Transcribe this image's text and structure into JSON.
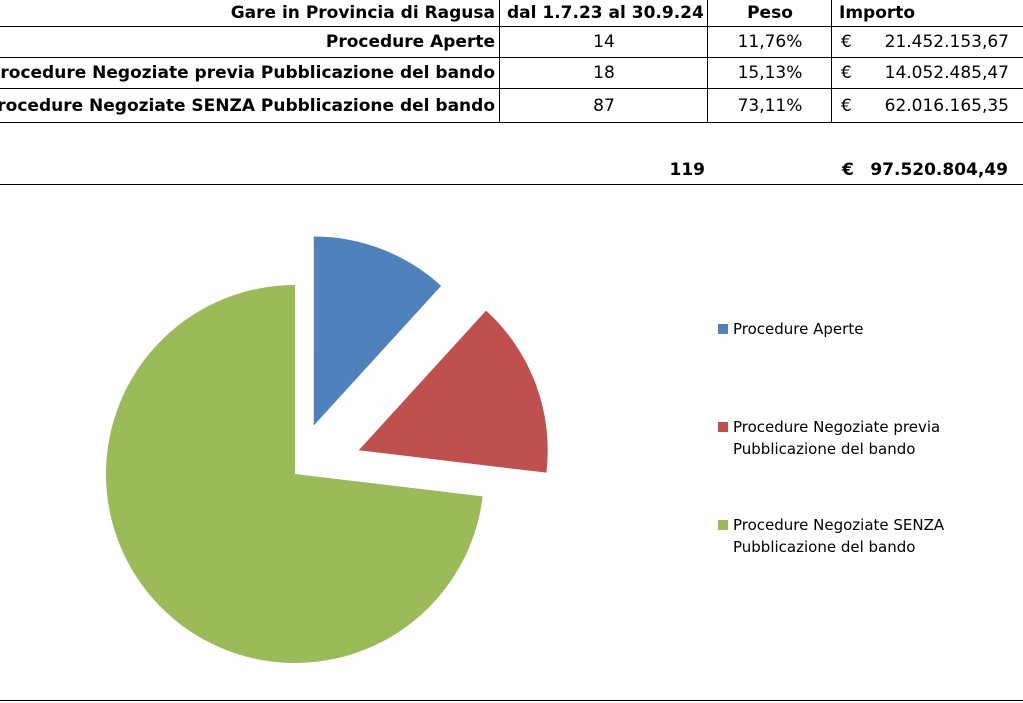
{
  "table": {
    "header": {
      "label": "Gare in Provincia di Ragusa",
      "period": "dal 1.7.23 al 30.9.24",
      "peso": "Peso",
      "importo": "Importo"
    },
    "rows": [
      {
        "label": "Procedure Aperte",
        "count": "14",
        "peso": "11,76%",
        "currency": "€",
        "amount": "21.452.153,67"
      },
      {
        "label": "Procedure Negoziate previa Pubblicazione del bando",
        "count": "18",
        "peso": "15,13%",
        "currency": "€",
        "amount": "14.052.485,47"
      },
      {
        "label": "Procedure Negoziate SENZA Pubblicazione del bando",
        "count": "87",
        "peso": "73,11%",
        "currency": "€",
        "amount": "62.016.165,35"
      }
    ],
    "total": {
      "count": "119",
      "currency": "€",
      "amount": "97.520.804,49"
    }
  },
  "chart_data": {
    "type": "pie",
    "exploded": true,
    "categories": [
      "Procedure Aperte",
      "Procedure Negoziate previa Pubblicazione del bando",
      "Procedure Negoziate SENZA Pubblicazione del bando"
    ],
    "values": [
      14,
      18,
      87
    ],
    "colors": [
      "#4F81BD",
      "#C0504D",
      "#9BBB59"
    ],
    "legend_position": "right"
  }
}
